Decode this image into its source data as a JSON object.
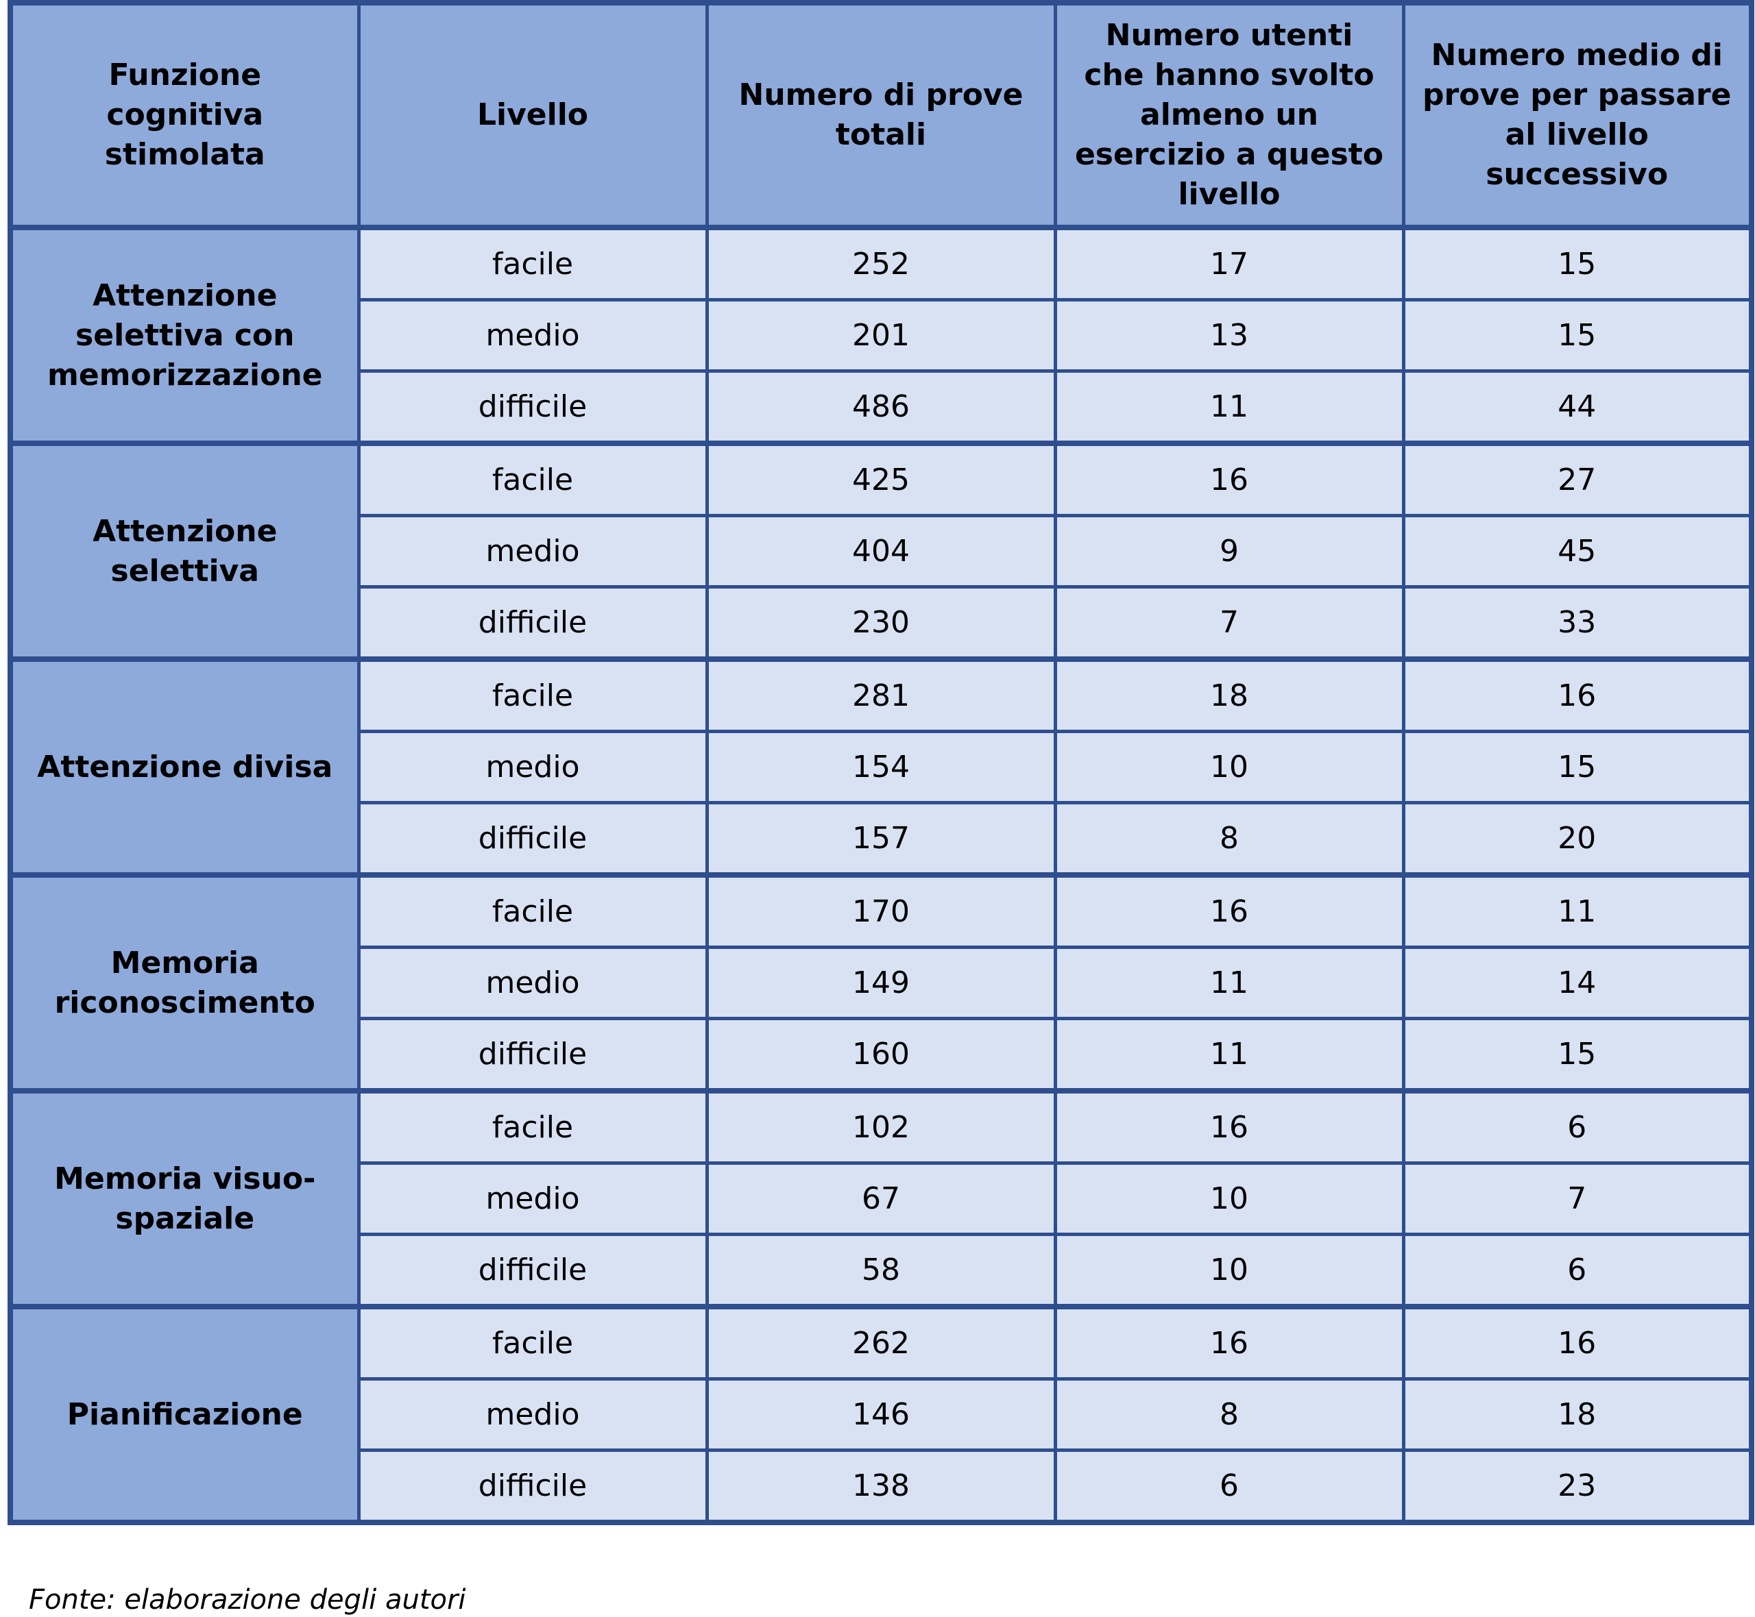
{
  "headers": [
    "Funzione cognitiva stimolata",
    "Livello",
    "Numero di prove totali",
    "Numero utenti che hanno svolto almeno un esercizio a questo livello",
    "Numero medio di prove per passare al livello successivo"
  ],
  "groups": [
    {
      "name": "Attenzione selettiva con memorizzazione",
      "rows": [
        {
          "level": "facile",
          "total": "252",
          "users": "17",
          "avg": "15"
        },
        {
          "level": "medio",
          "total": "201",
          "users": "13",
          "avg": "15"
        },
        {
          "level": "difficile",
          "total": "486",
          "users": "11",
          "avg": "44"
        }
      ]
    },
    {
      "name": "Attenzione selettiva",
      "rows": [
        {
          "level": "facile",
          "total": "425",
          "users": "16",
          "avg": "27"
        },
        {
          "level": "medio",
          "total": "404",
          "users": "9",
          "avg": "45"
        },
        {
          "level": "difficile",
          "total": "230",
          "users": "7",
          "avg": "33"
        }
      ]
    },
    {
      "name": "Attenzione divisa",
      "rows": [
        {
          "level": "facile",
          "total": "281",
          "users": "18",
          "avg": "16"
        },
        {
          "level": "medio",
          "total": "154",
          "users": "10",
          "avg": "15"
        },
        {
          "level": "difficile",
          "total": "157",
          "users": "8",
          "avg": "20"
        }
      ]
    },
    {
      "name": "Memoria riconoscimento",
      "rows": [
        {
          "level": "facile",
          "total": "170",
          "users": "16",
          "avg": "11"
        },
        {
          "level": "medio",
          "total": "149",
          "users": "11",
          "avg": "14"
        },
        {
          "level": "difficile",
          "total": "160",
          "users": "11",
          "avg": "15"
        }
      ]
    },
    {
      "name": "Memoria visuo-spaziale",
      "rows": [
        {
          "level": "facile",
          "total": "102",
          "users": "16",
          "avg": "6"
        },
        {
          "level": "medio",
          "total": "67",
          "users": "10",
          "avg": "7"
        },
        {
          "level": "difficile",
          "total": "58",
          "users": "10",
          "avg": "6"
        }
      ]
    },
    {
      "name": "Pianificazione",
      "rows": [
        {
          "level": "facile",
          "total": "262",
          "users": "16",
          "avg": "16"
        },
        {
          "level": "medio",
          "total": "146",
          "users": "8",
          "avg": "18"
        },
        {
          "level": "difficile",
          "total": "138",
          "users": "6",
          "avg": "23"
        }
      ]
    }
  ],
  "source_note": "Fonte: elaborazione degli autori"
}
